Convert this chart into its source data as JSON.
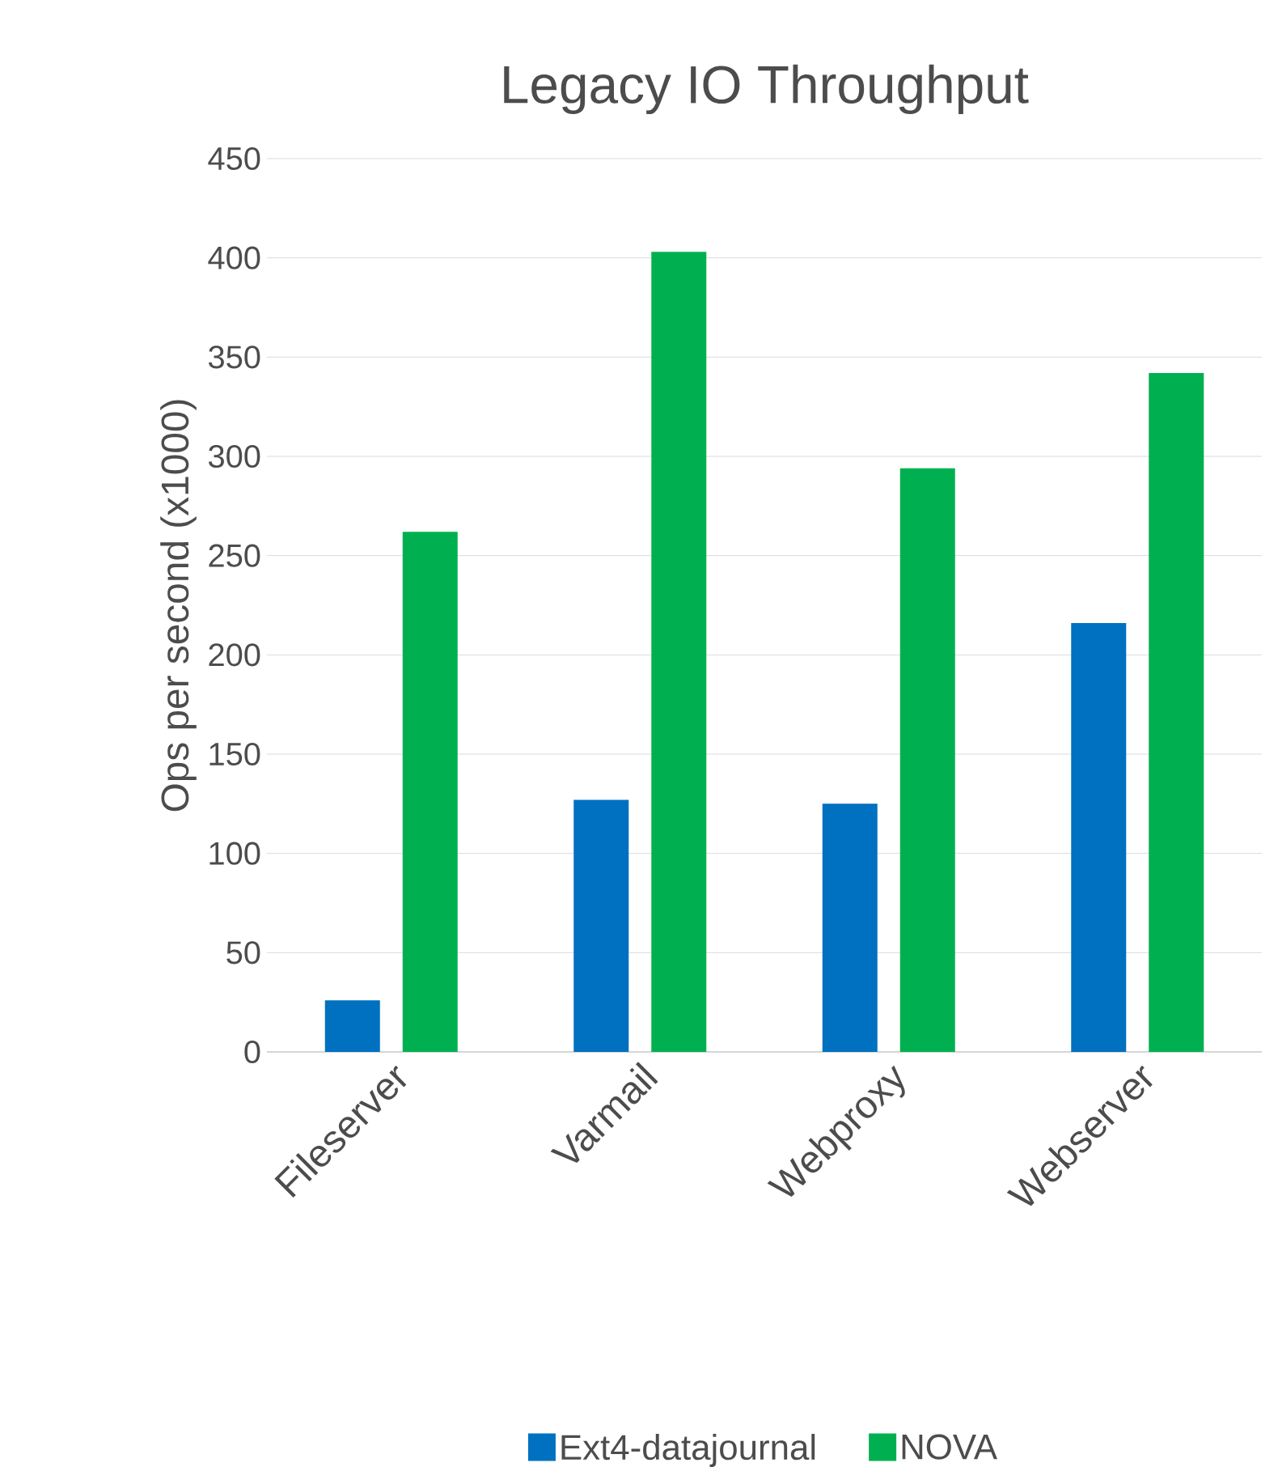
{
  "chart_data": {
    "type": "bar",
    "title": "Legacy IO Throughput",
    "ylabel": "Ops per second (x1000)",
    "categories": [
      "Fileserver",
      "Varmail",
      "Webproxy",
      "Webserver"
    ],
    "series": [
      {
        "name": "Ext4-datajournal",
        "color": "#0070c0",
        "values": [
          26,
          127,
          125,
          216
        ]
      },
      {
        "name": "NOVA",
        "color": "#00b050",
        "values": [
          262,
          403,
          294,
          342
        ]
      }
    ],
    "ylim": [
      0,
      450
    ],
    "yticks": [
      0,
      50,
      100,
      150,
      200,
      250,
      300,
      350,
      400,
      450
    ],
    "grid": "y",
    "legend": "bottom"
  }
}
